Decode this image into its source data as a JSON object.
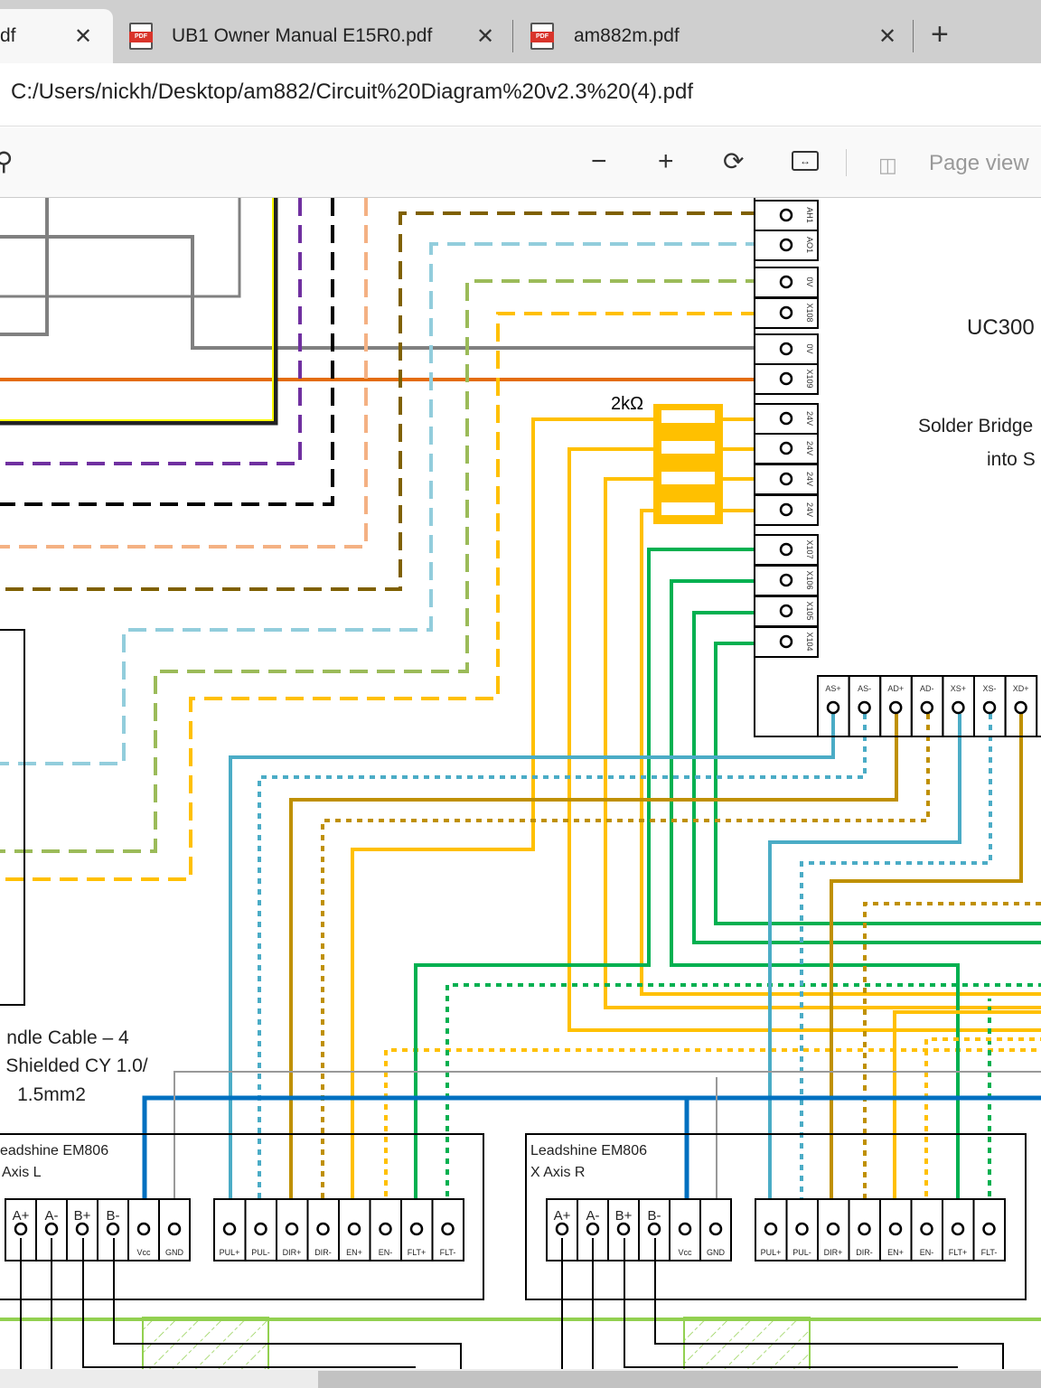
{
  "tabs": [
    {
      "label": "df",
      "active": true
    },
    {
      "label": "UB1 Owner Manual E15R0.pdf",
      "icon": "pdf-icon"
    },
    {
      "label": "am882m.pdf",
      "icon": "pdf-icon"
    }
  ],
  "address": "C:/Users/nickh/Desktop/am882/Circuit%20Diagram%20v2.3%20(4).pdf",
  "toolbar": {
    "zoom_out": "−",
    "zoom_in": "+",
    "page_view": "Page view"
  },
  "diagram": {
    "controller_title": "UC300",
    "note_line1": "Solder Bridge",
    "note_line2": "into S",
    "resistor_label": "2kΩ",
    "controller_side_pins": [
      "AH1",
      "AO1",
      "0V",
      "X108",
      "0V",
      "X109",
      "24V",
      "24V",
      "24V",
      "24V",
      "X107",
      "X106",
      "X105",
      "X104"
    ],
    "controller_bottom_pins": [
      "AS+",
      "AS-",
      "AD+",
      "AD-",
      "XS+",
      "XS-",
      "XD+"
    ],
    "cable_line1": "ndle Cable – 4",
    "cable_line2": "Shielded CY 1.0/",
    "cable_line3": "1.5mm2",
    "driver_left": {
      "line1": "eadshine EM806",
      "line2": "Axis L"
    },
    "driver_right": {
      "line1": "Leadshine EM806",
      "line2": "X Axis R"
    },
    "motor_pins": [
      "A+",
      "A-",
      "B+",
      "B-",
      "Vcc",
      "GND"
    ],
    "signal_pins": [
      "PUL+",
      "PUL-",
      "DIR+",
      "DIR-",
      "EN+",
      "EN-",
      "FLT+",
      "FLT-"
    ]
  },
  "colors": {
    "brown": "#7f6000",
    "lightblue": "#92cddc",
    "olive": "#9bbb59",
    "yellow": "#ffc000",
    "gray": "#808080",
    "orange": "#e46c0a",
    "purple": "#7030a0",
    "peach": "#f4b183",
    "green": "#00b050",
    "blue": "#0070c0",
    "cyan": "#4bacc6",
    "gold": "#bf9000"
  }
}
